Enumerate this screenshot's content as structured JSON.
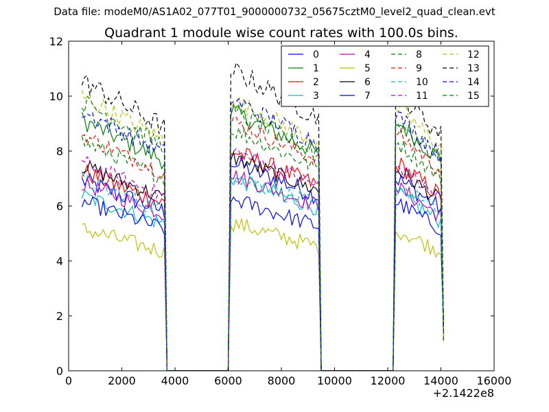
{
  "figure": {
    "suptitle": "Data file: modeM0/AS1A02_077T01_9000000732_05675cztM0_level2_quad_clean.evt",
    "title": "Quadrant 1 module wise count rates with 100.0s bins.",
    "offset_label": "+2.1422e8"
  },
  "chart_data": {
    "type": "line",
    "title": "Quadrant 1 module wise count rates with 100.0s bins.",
    "xlabel": "",
    "ylabel": "",
    "xlim": [
      0,
      16000
    ],
    "ylim": [
      0,
      12
    ],
    "x_offset": 214220000,
    "xticks": [
      0,
      2000,
      4000,
      6000,
      8000,
      10000,
      12000,
      14000,
      16000
    ],
    "yticks": [
      0,
      2,
      4,
      6,
      8,
      10,
      12
    ],
    "grid": false,
    "legend_position": "top-right",
    "segments": [
      {
        "start": 500,
        "end": 3600,
        "drop_to": 3700
      },
      {
        "start": 6100,
        "end": 9400,
        "rise_from": 6000,
        "drop_to": 9500
      },
      {
        "start": 12300,
        "end": 14000,
        "rise_from": 12200,
        "drop_to": 14100
      }
    ],
    "series": [
      {
        "name": "0",
        "color": "#0000ff",
        "style": "solid",
        "levels": [
          6.3,
          6.9,
          6.4
        ],
        "noise": 0.35
      },
      {
        "name": "1",
        "color": "#008000",
        "style": "solid",
        "levels": [
          8.3,
          8.6,
          8.3
        ],
        "noise": 0.35
      },
      {
        "name": "2",
        "color": "#ff0000",
        "style": "solid",
        "levels": [
          6.6,
          7.3,
          6.9
        ],
        "noise": 0.35
      },
      {
        "name": "3",
        "color": "#00bfbf",
        "style": "solid",
        "levels": [
          5.8,
          6.4,
          5.9
        ],
        "noise": 0.3
      },
      {
        "name": "4",
        "color": "#bf00bf",
        "style": "solid",
        "levels": [
          6.2,
          6.5,
          6.1
        ],
        "noise": 0.3
      },
      {
        "name": "5",
        "color": "#bfbf00",
        "style": "solid",
        "levels": [
          4.7,
          4.9,
          4.7
        ],
        "noise": 0.3
      },
      {
        "name": "6",
        "color": "#000000",
        "style": "solid",
        "levels": [
          6.8,
          7.1,
          6.7
        ],
        "noise": 0.3
      },
      {
        "name": "7",
        "color": "#0000ff",
        "style": "solid",
        "levels": [
          5.6,
          5.7,
          5.6
        ],
        "noise": 0.3
      },
      {
        "name": "8",
        "color": "#008000",
        "style": "dashed",
        "levels": [
          7.6,
          8.0,
          7.6
        ],
        "noise": 0.3
      },
      {
        "name": "9",
        "color": "#ff0000",
        "style": "dashed",
        "levels": [
          7.8,
          8.3,
          7.9
        ],
        "noise": 0.3
      },
      {
        "name": "10",
        "color": "#00bfbf",
        "style": "dashed",
        "levels": [
          6.3,
          6.5,
          6.2
        ],
        "noise": 0.3
      },
      {
        "name": "11",
        "color": "#bf00bf",
        "style": "dashed",
        "levels": [
          6.9,
          7.3,
          6.8
        ],
        "noise": 0.3
      },
      {
        "name": "12",
        "color": "#bfbf00",
        "style": "dashed",
        "levels": [
          9.1,
          9.0,
          8.8
        ],
        "noise": 0.35
      },
      {
        "name": "13",
        "color": "#000000",
        "style": "dashed",
        "levels": [
          9.6,
          10.0,
          9.3
        ],
        "noise": 0.4
      },
      {
        "name": "14",
        "color": "#0000ff",
        "style": "dashed",
        "levels": [
          8.6,
          9.0,
          8.5
        ],
        "noise": 0.35
      },
      {
        "name": "15",
        "color": "#008000",
        "style": "dashed",
        "levels": [
          8.9,
          8.6,
          8.3
        ],
        "noise": 0.35
      }
    ]
  }
}
